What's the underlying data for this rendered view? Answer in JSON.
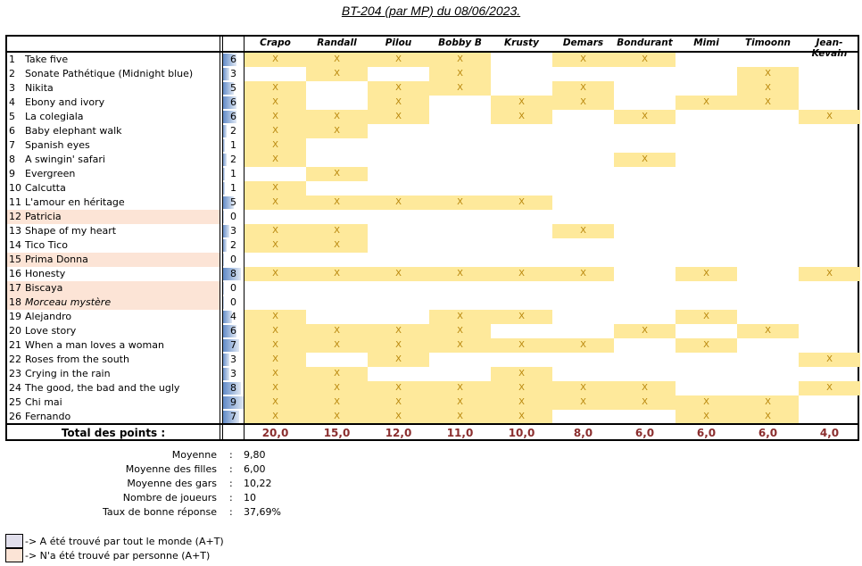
{
  "title": "BT-204 (par MP) du 08/06/2023.",
  "players": [
    "Crapo",
    "Randall",
    "Pilou",
    "Bobby B",
    "Krusty",
    "Demars",
    "Bondurant",
    "Mimi",
    "Timoonn",
    "Jean-Kevain"
  ],
  "songs": [
    {
      "n": "1",
      "name": "Take five",
      "count": "6",
      "marks": [
        1,
        1,
        1,
        1,
        0,
        1,
        1,
        0,
        0,
        0
      ]
    },
    {
      "n": "2",
      "name": "Sonate Pathétique (Midnight blue)",
      "count": "3",
      "marks": [
        0,
        1,
        0,
        1,
        0,
        0,
        0,
        0,
        1,
        0
      ]
    },
    {
      "n": "3",
      "name": "Nikita",
      "count": "5",
      "marks": [
        1,
        0,
        1,
        1,
        0,
        1,
        0,
        0,
        1,
        0
      ]
    },
    {
      "n": "4",
      "name": "Ebony and ivory",
      "count": "6",
      "marks": [
        1,
        0,
        1,
        0,
        1,
        1,
        0,
        1,
        1,
        0
      ]
    },
    {
      "n": "5",
      "name": "La colegiala",
      "count": "6",
      "marks": [
        1,
        1,
        1,
        0,
        1,
        0,
        1,
        0,
        0,
        1
      ]
    },
    {
      "n": "6",
      "name": "Baby elephant walk",
      "count": "2",
      "marks": [
        1,
        1,
        0,
        0,
        0,
        0,
        0,
        0,
        0,
        0
      ]
    },
    {
      "n": "7",
      "name": "Spanish eyes",
      "count": "1",
      "marks": [
        1,
        0,
        0,
        0,
        0,
        0,
        0,
        0,
        0,
        0
      ]
    },
    {
      "n": "8",
      "name": "A swingin' safari",
      "count": "2",
      "marks": [
        1,
        0,
        0,
        0,
        0,
        0,
        1,
        0,
        0,
        0
      ]
    },
    {
      "n": "9",
      "name": "Evergreen",
      "count": "1",
      "marks": [
        0,
        1,
        0,
        0,
        0,
        0,
        0,
        0,
        0,
        0
      ]
    },
    {
      "n": "10",
      "name": "Calcutta",
      "count": "1",
      "marks": [
        1,
        0,
        0,
        0,
        0,
        0,
        0,
        0,
        0,
        0
      ]
    },
    {
      "n": "11",
      "name": "L'amour en héritage",
      "count": "5",
      "marks": [
        1,
        1,
        1,
        1,
        1,
        0,
        0,
        0,
        0,
        0
      ]
    },
    {
      "n": "12",
      "name": "Patricia",
      "count": "0",
      "none": true,
      "marks": [
        0,
        0,
        0,
        0,
        0,
        0,
        0,
        0,
        0,
        0
      ]
    },
    {
      "n": "13",
      "name": "Shape of my heart",
      "count": "3",
      "marks": [
        1,
        1,
        0,
        0,
        0,
        1,
        0,
        0,
        0,
        0
      ]
    },
    {
      "n": "14",
      "name": "Tico Tico",
      "count": "2",
      "marks": [
        1,
        1,
        0,
        0,
        0,
        0,
        0,
        0,
        0,
        0
      ]
    },
    {
      "n": "15",
      "name": "Prima Donna",
      "count": "0",
      "none": true,
      "marks": [
        0,
        0,
        0,
        0,
        0,
        0,
        0,
        0,
        0,
        0
      ]
    },
    {
      "n": "16",
      "name": "Honesty",
      "count": "8",
      "marks": [
        1,
        1,
        1,
        1,
        1,
        1,
        0,
        1,
        0,
        1
      ]
    },
    {
      "n": "17",
      "name": "Biscaya",
      "count": "0",
      "none": true,
      "marks": [
        0,
        0,
        0,
        0,
        0,
        0,
        0,
        0,
        0,
        0
      ]
    },
    {
      "n": "18",
      "name": "Morceau mystère",
      "count": "0",
      "none": true,
      "italic": true,
      "marks": [
        0,
        0,
        0,
        0,
        0,
        0,
        0,
        0,
        0,
        0
      ]
    },
    {
      "n": "19",
      "name": "Alejandro",
      "count": "4",
      "marks": [
        1,
        0,
        0,
        1,
        1,
        0,
        0,
        1,
        0,
        0
      ]
    },
    {
      "n": "20",
      "name": "Love story",
      "count": "6",
      "marks": [
        1,
        1,
        1,
        1,
        0,
        0,
        1,
        0,
        1,
        0
      ]
    },
    {
      "n": "21",
      "name": "When a man loves a woman",
      "count": "7",
      "marks": [
        1,
        1,
        1,
        1,
        1,
        1,
        0,
        1,
        0,
        0
      ]
    },
    {
      "n": "22",
      "name": "Roses from the south",
      "count": "3",
      "marks": [
        1,
        0,
        1,
        0,
        0,
        0,
        0,
        0,
        0,
        1
      ]
    },
    {
      "n": "23",
      "name": "Crying in the rain",
      "count": "3",
      "marks": [
        1,
        1,
        0,
        0,
        1,
        0,
        0,
        0,
        0,
        0
      ]
    },
    {
      "n": "24",
      "name": "The good, the bad and the ugly",
      "count": "8",
      "marks": [
        1,
        1,
        1,
        1,
        1,
        1,
        1,
        0,
        0,
        1
      ]
    },
    {
      "n": "25",
      "name": "Chi mai",
      "count": "9",
      "marks": [
        1,
        1,
        1,
        1,
        1,
        1,
        1,
        1,
        1,
        0
      ]
    },
    {
      "n": "26",
      "name": "Fernando",
      "count": "7",
      "marks": [
        1,
        1,
        1,
        1,
        1,
        0,
        0,
        1,
        1,
        0
      ]
    }
  ],
  "mark_symbol": "X",
  "total_label": "Total des points :",
  "totals": [
    "20,0",
    "15,0",
    "12,0",
    "11,0",
    "10,0",
    "8,0",
    "6,0",
    "6,0",
    "6,0",
    "4,0"
  ],
  "stats": [
    {
      "label": "Moyenne",
      "sep": ":",
      "value": "9,80"
    },
    {
      "label": "Moyenne des filles",
      "sep": ":",
      "value": "6,00"
    },
    {
      "label": "Moyenne des gars",
      "sep": ":",
      "value": "10,22"
    },
    {
      "label": "Nombre de joueurs",
      "sep": ":",
      "value": "10"
    },
    {
      "label": "Taux de bonne réponse",
      "sep": ":",
      "value": "37,69%"
    }
  ],
  "legend": [
    {
      "text": "-> A été trouvé par tout le monde (A+T)",
      "color": "#e1dfec"
    },
    {
      "text": "-> N'a été trouvé par personne (A+T)",
      "color": "#fce4d6"
    }
  ],
  "colors": {
    "found": "#fee99b",
    "none": "#fce4d6",
    "total": "#8b2e2e"
  }
}
